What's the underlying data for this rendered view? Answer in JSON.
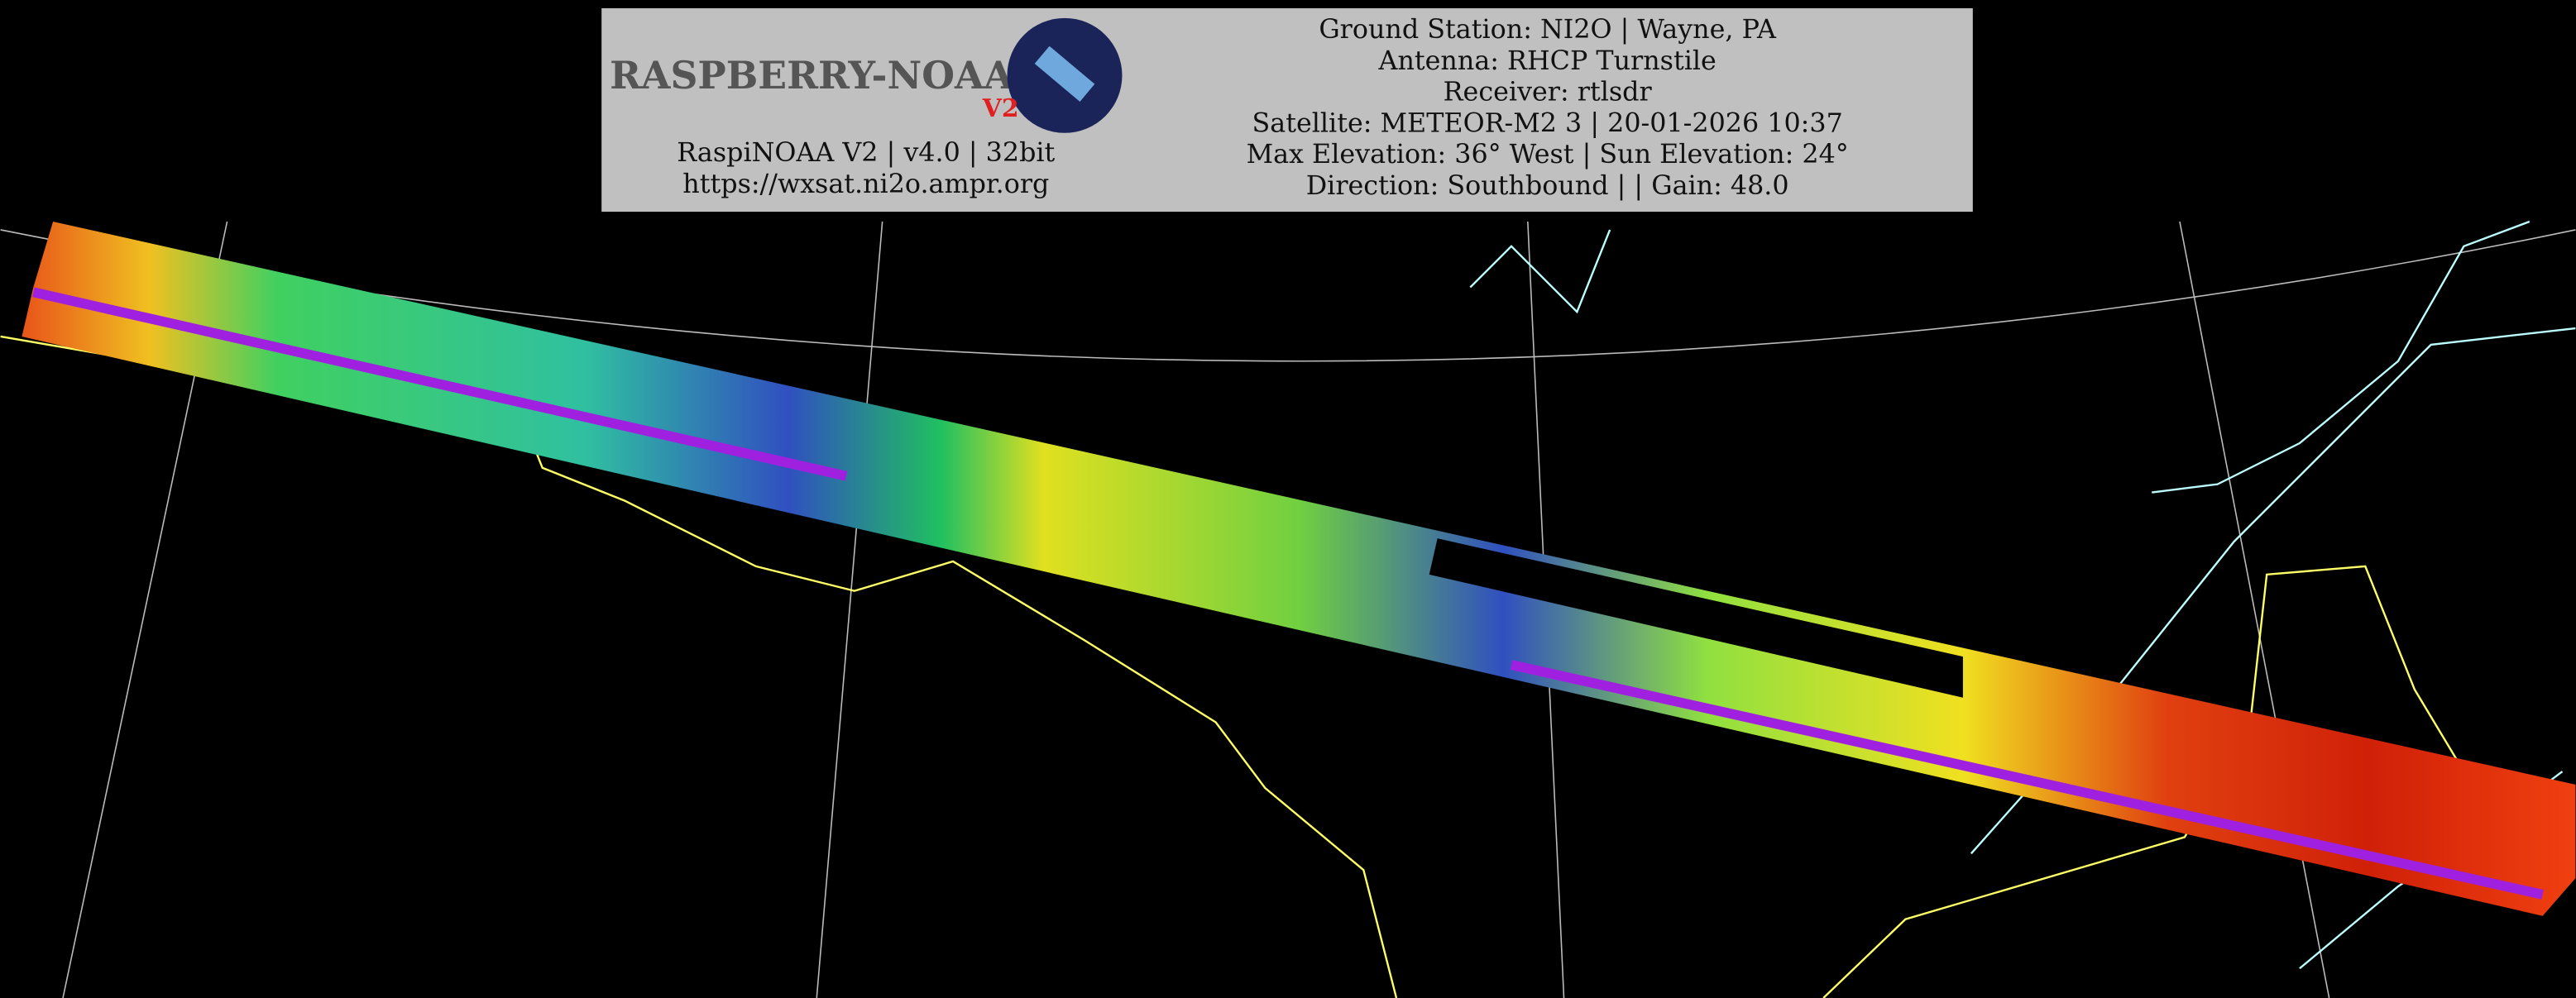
{
  "header": {
    "logo": {
      "text": "RASPBERRY-NOAA",
      "badge": "V2"
    },
    "left_lines": [
      "RaspiNOAA V2 | v4.0 | 32bit",
      "https://wxsat.ni2o.ampr.org"
    ],
    "right_lines": [
      "Ground Station: NI2O | Wayne, PA",
      "Antenna: RHCP Turnstile",
      "Receiver: rtlsdr",
      "Satellite: METEOR-M2 3 | 20-01-2026 10:37",
      "Max Elevation: 36° West | Sun Elevation: 24°",
      "Direction: Southbound | | Gain: 48.0"
    ]
  }
}
